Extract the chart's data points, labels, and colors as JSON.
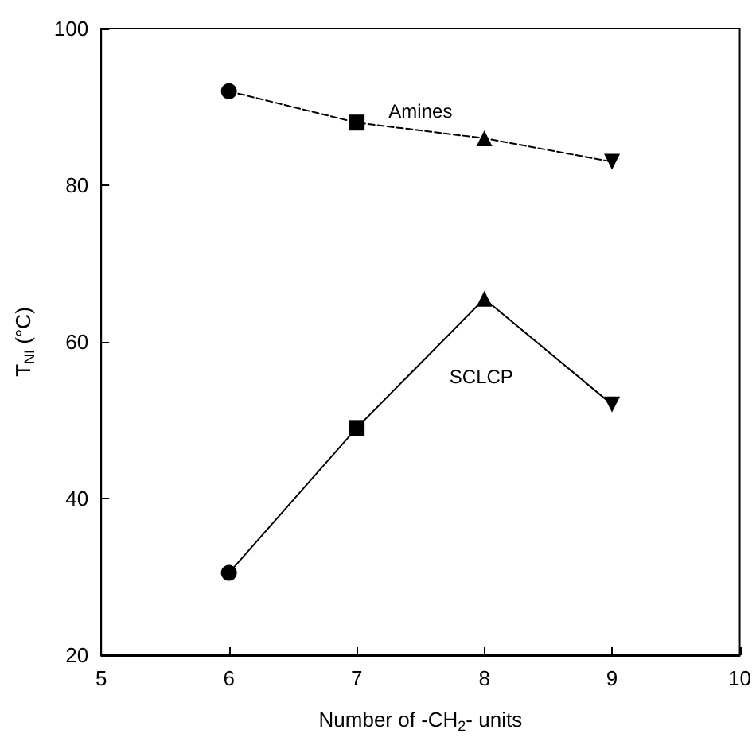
{
  "chart_data": {
    "type": "line",
    "xlabel": "Number of -CH$_{2}$- units",
    "ylabel": "T$_{NI}$ (°C)",
    "x": [
      6,
      7,
      8,
      9
    ],
    "xlim": [
      5,
      10
    ],
    "xticks": [
      5,
      6,
      7,
      8,
      9,
      10
    ],
    "ylim": [
      20,
      100
    ],
    "yticks": [
      20,
      40,
      60,
      80,
      100
    ],
    "grid": false,
    "legend": false,
    "series": [
      {
        "name": "Amines",
        "color": "#000000",
        "values": [
          92,
          88,
          86,
          83
        ],
        "line_style": "dashed",
        "marker": [
          "circle",
          "square",
          "triangle",
          "triangle-down"
        ]
      },
      {
        "name": "SCLCP",
        "color": "#000000",
        "values": [
          30.5,
          49,
          65.5,
          52
        ],
        "line_style": "solid",
        "marker": [
          "circle",
          "square",
          "triangle",
          "triangle-down"
        ]
      }
    ]
  }
}
